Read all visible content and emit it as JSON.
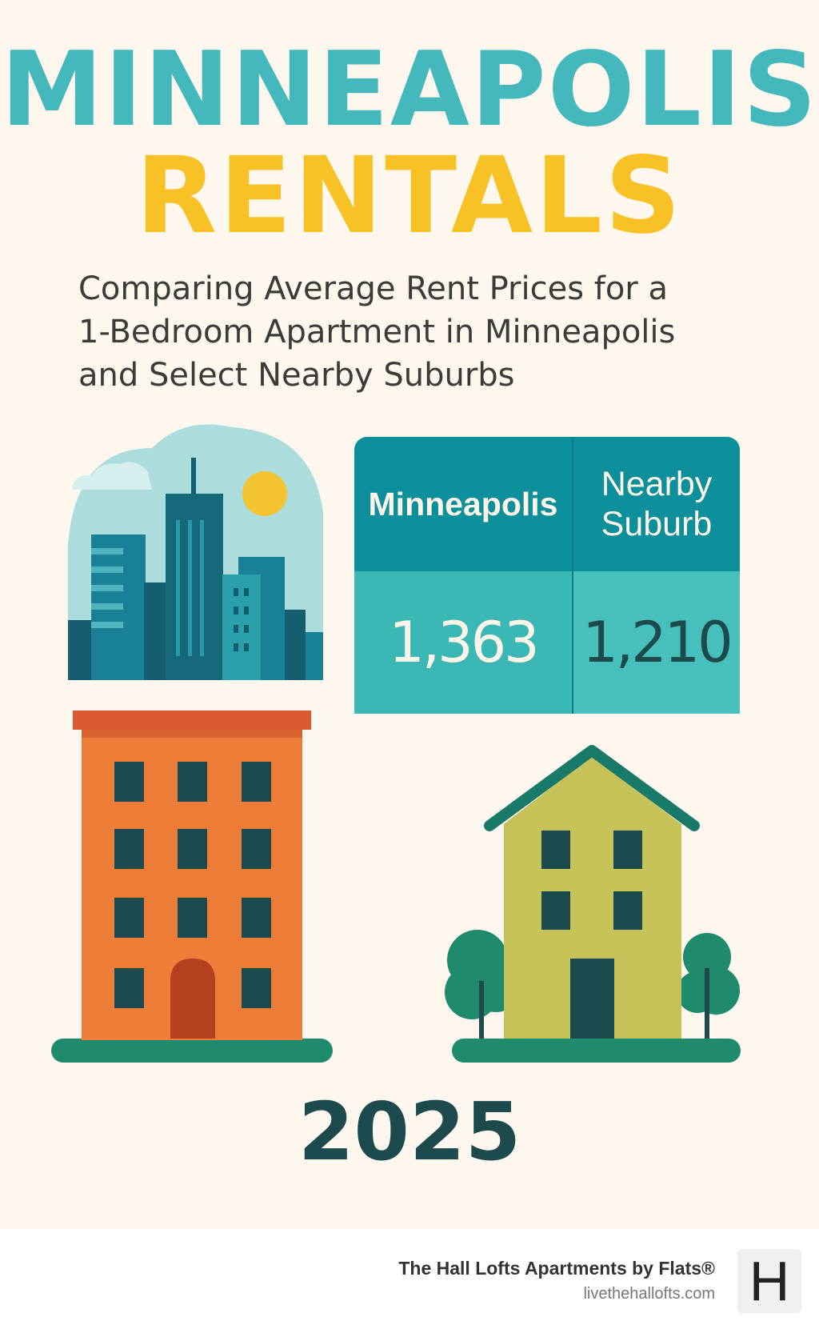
{
  "header": {
    "title_line1": "MINNEAPOLIS",
    "title_line2": "RENTALS",
    "subtitle_lines": [
      "Comparing Average Rent Prices for a",
      "1-Bedroom Apartment in Minneapolis",
      "and Select Nearby Suburbs"
    ]
  },
  "comparison_table": {
    "columns": [
      {
        "header": "Minneapolis",
        "value": "1,363"
      },
      {
        "header_lines": [
          "Nearby",
          "Suburb"
        ],
        "value": "1,210"
      }
    ]
  },
  "year": "2025",
  "footer": {
    "brand": "The Hall Lofts Apartments by Flats®",
    "url": "livethehallofts.com",
    "logo_letter": "H"
  },
  "colors": {
    "title_teal": "#45b8bd",
    "title_yellow": "#f8c226",
    "table_header": "#0e8f9c",
    "table_body": "#3bb7b6",
    "city_building": "#ee7d3a",
    "suburb_house": "#c5c25a",
    "ground": "#1f8a6c"
  }
}
